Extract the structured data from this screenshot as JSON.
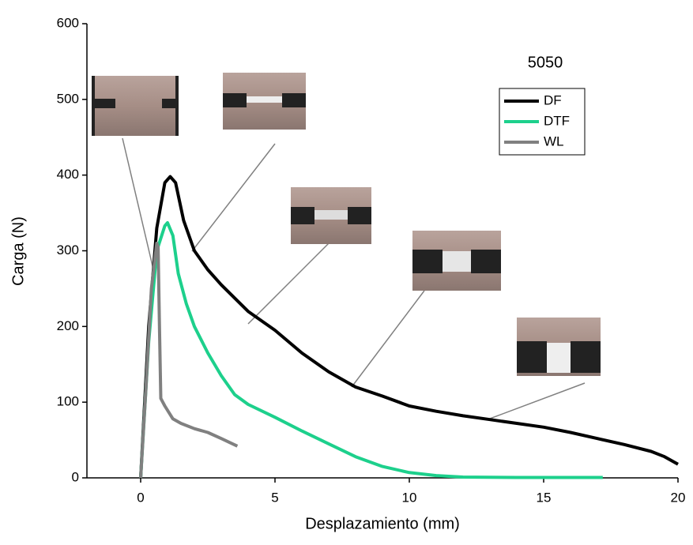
{
  "chart_data": {
    "type": "line",
    "xlabel": "Desplazamiento (mm)",
    "ylabel": "Carga (N)",
    "legend_title": "5050",
    "xlim": [
      -2,
      20
    ],
    "xticks": [
      0,
      5,
      10,
      15,
      20
    ],
    "ylim": [
      0,
      600
    ],
    "yticks": [
      0,
      100,
      200,
      300,
      400,
      500,
      600
    ],
    "legend": "upper right",
    "series": [
      {
        "name": "DF",
        "color": "#000000",
        "x": [
          0,
          0.3,
          0.6,
          0.9,
          1.1,
          1.3,
          1.6,
          2,
          2.5,
          3,
          4,
          5,
          6,
          7,
          8,
          9,
          10,
          11,
          12,
          13,
          14,
          15,
          16,
          17,
          18,
          19,
          19.5,
          20
        ],
        "values": [
          0,
          200,
          330,
          390,
          398,
          390,
          340,
          300,
          275,
          255,
          220,
          195,
          165,
          140,
          120,
          108,
          95,
          88,
          82,
          77,
          72,
          67,
          60,
          52,
          44,
          35,
          28,
          18
        ]
      },
      {
        "name": "DTF",
        "color": "#1dd08c",
        "x": [
          0,
          0.3,
          0.6,
          0.9,
          1.0,
          1.2,
          1.4,
          1.7,
          2,
          2.5,
          3,
          3.5,
          4,
          5,
          6,
          7,
          8,
          9,
          10,
          11,
          12,
          14,
          17.2
        ],
        "values": [
          0,
          180,
          300,
          333,
          337,
          320,
          270,
          230,
          200,
          165,
          135,
          110,
          97,
          80,
          62,
          45,
          28,
          15,
          7,
          3,
          1,
          0.5,
          0.5
        ]
      },
      {
        "name": "WL",
        "color": "#808080",
        "x": [
          0,
          0.2,
          0.4,
          0.6,
          0.65,
          0.7,
          0.75,
          0.9,
          1.2,
          1.5,
          2,
          2.5,
          3,
          3.6
        ],
        "values": [
          0,
          120,
          250,
          310,
          305,
          200,
          105,
          95,
          78,
          72,
          65,
          60,
          52,
          42
        ]
      }
    ]
  }
}
